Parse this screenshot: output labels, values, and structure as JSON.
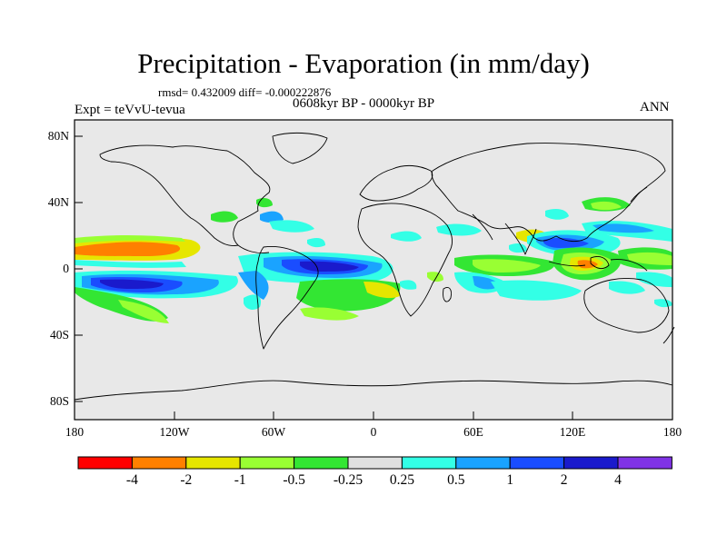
{
  "header": {
    "title": "Precipitation - Evaporation (in mm/day)",
    "stats": "rmsd= 0.432009 diff= -0.000222876",
    "period": "0608kyr BP - 0000kyr BP",
    "experiment": "Expt = teVvU-tevua",
    "season": "ANN"
  },
  "axes": {
    "y_ticks": [
      "80N",
      "40N",
      "0",
      "40S",
      "80S"
    ],
    "x_ticks": [
      "180",
      "120W",
      "60W",
      "0",
      "60E",
      "120E",
      "180"
    ]
  },
  "colorbar": {
    "labels": [
      "-4",
      "-2",
      "-1",
      "-0.5",
      "-0.25",
      "0.25",
      "0.5",
      "1",
      "2",
      "4"
    ],
    "colors": [
      "#ff0000",
      "#ff8000",
      "#e6e600",
      "#99ff33",
      "#33e633",
      "#e0e0e0",
      "#33ffe6",
      "#1aa3ff",
      "#1a4dff",
      "#1a1acc",
      "#8033e6"
    ]
  }
}
